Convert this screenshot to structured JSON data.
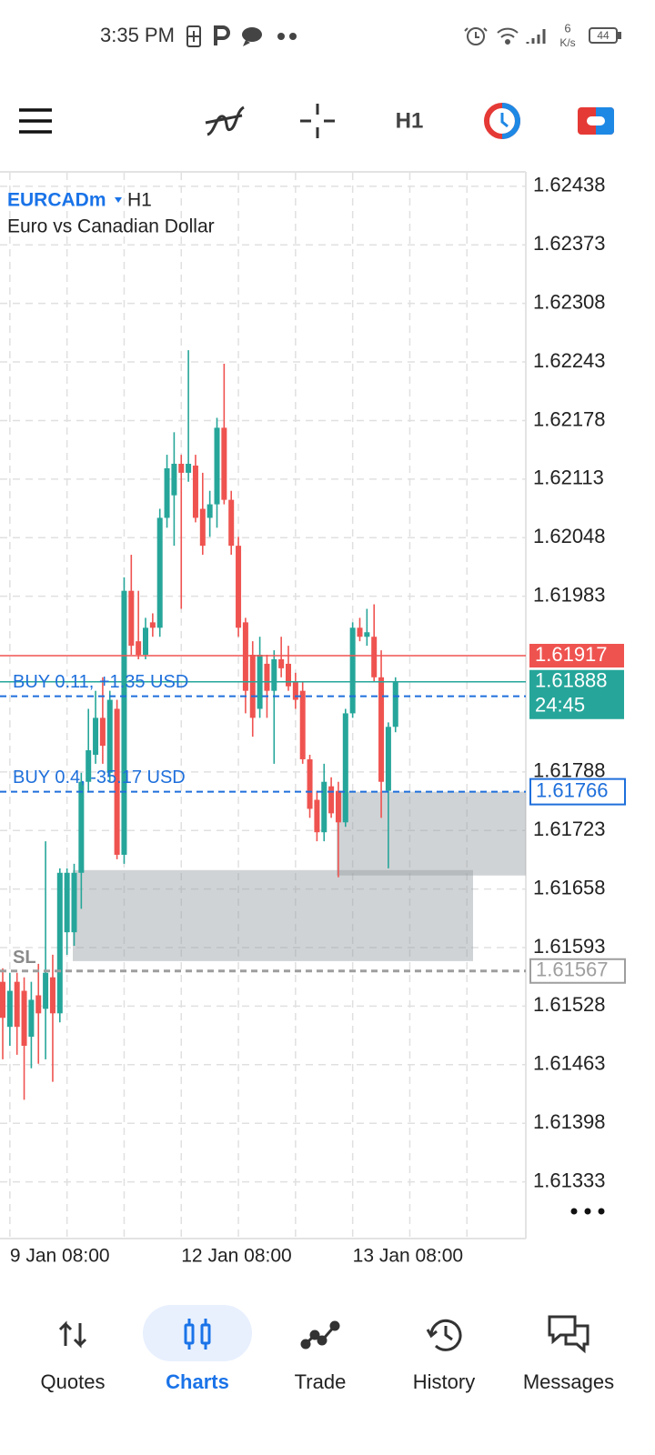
{
  "status_bar": {
    "time": "3:35 PM",
    "speed_value": "6",
    "speed_unit": "K/s",
    "battery": "44"
  },
  "toolbar": {
    "timeframe": "H1"
  },
  "chart_data": {
    "type": "candlestick",
    "symbol": "EURCADm",
    "timeframe": "H1",
    "description": "Euro vs Canadian Dollar",
    "categories": [
      null,
      "9 Jan 08:00",
      null,
      null,
      null,
      null,
      null,
      null,
      null,
      null,
      null,
      null,
      null,
      null,
      null,
      null,
      null,
      null,
      null,
      null,
      null,
      null,
      null,
      null,
      null,
      "12 Jan 08:00",
      null,
      null,
      null,
      null,
      null,
      null,
      null,
      null,
      null,
      null,
      null,
      null,
      null,
      null,
      null,
      null,
      null,
      null,
      null,
      null,
      null,
      null,
      null,
      "13 Jan 08:00",
      null,
      null,
      null,
      null,
      null,
      null,
      null,
      null,
      null,
      null,
      null,
      null,
      null,
      null,
      null,
      null,
      null,
      null,
      null,
      null,
      null,
      null,
      null
    ],
    "open": [
      1.61555,
      1.61505,
      1.61555,
      1.61545,
      1.61494,
      1.6154,
      1.61525,
      1.6156,
      1.6152,
      1.6161,
      1.6161,
      1.61676,
      1.61777,
      1.61807,
      1.61848,
      1.61787,
      1.61858,
      1.61696,
      1.61989,
      1.61933,
      1.61918,
      1.61954,
      1.61948,
      1.6207,
      1.62095,
      1.6213,
      1.6212,
      1.62128,
      1.6208,
      1.6207,
      1.62085,
      1.6217,
      1.6209,
      1.62039,
      1.61954,
      1.61918,
      1.61858,
      1.61908,
      1.61878,
      1.61913,
      1.61908,
      1.61888,
      1.61878,
      1.61802,
      1.61757,
      1.61721,
      1.61772,
      1.61767,
      1.61732,
      1.61853,
      1.61948,
      1.61938,
      1.61938,
      1.61893,
      1.61767,
      1.61838,
      null,
      null,
      null,
      null,
      null,
      null,
      null,
      null,
      null,
      null,
      null,
      null,
      null,
      null,
      null,
      null,
      null
    ],
    "high": [
      1.6157,
      1.61565,
      1.61565,
      1.6156,
      1.61555,
      1.61575,
      1.61711,
      1.61585,
      1.61681,
      1.61681,
      1.61686,
      1.61787,
      1.61858,
      1.61878,
      1.61893,
      1.61878,
      1.61868,
      1.62004,
      1.62029,
      1.61989,
      1.61959,
      1.61964,
      1.6208,
      1.6214,
      1.62165,
      1.6214,
      1.62256,
      1.6214,
      1.6212,
      1.621,
      1.62181,
      1.62241,
      1.621,
      1.62049,
      1.61959,
      1.61933,
      1.61938,
      1.61918,
      1.61923,
      1.61938,
      1.61928,
      1.61898,
      1.61888,
      1.61807,
      1.61767,
      1.61797,
      1.61782,
      1.61777,
      1.61858,
      1.61954,
      1.61959,
      1.61969,
      1.61974,
      1.61923,
      1.61843,
      1.61893,
      null,
      null,
      null,
      null,
      null,
      null,
      null,
      null,
      null,
      null,
      null,
      null,
      null,
      null,
      null,
      null,
      null
    ],
    "low": [
      1.61469,
      1.61484,
      1.61474,
      1.61424,
      1.61459,
      1.61464,
      1.61469,
      1.61444,
      1.6151,
      1.61585,
      1.61595,
      1.61636,
      1.61767,
      1.61797,
      1.61797,
      1.61777,
      1.61691,
      1.61686,
      1.61918,
      1.61913,
      1.61913,
      1.61938,
      1.61938,
      1.62059,
      1.62039,
      1.61969,
      1.6211,
      1.62065,
      1.62029,
      1.62049,
      1.62059,
      1.62085,
      1.62029,
      1.61938,
      1.61853,
      1.61827,
      1.61848,
      1.61848,
      1.61797,
      1.61893,
      1.61878,
      1.61858,
      1.61797,
      1.61737,
      1.61711,
      1.61711,
      1.61737,
      1.61671,
      1.61727,
      1.61848,
      1.61933,
      1.61928,
      1.61888,
      1.61737,
      1.61681,
      1.61832,
      null,
      null,
      null,
      null,
      null,
      null,
      null,
      null,
      null,
      null,
      null,
      null,
      null,
      null,
      null,
      null,
      null
    ],
    "close": [
      1.61515,
      1.61545,
      1.61505,
      1.61484,
      1.61535,
      1.6152,
      1.61565,
      1.6152,
      1.61676,
      1.61676,
      1.61676,
      1.61777,
      1.61812,
      1.61848,
      1.61817,
      1.61868,
      1.61696,
      1.61989,
      1.61928,
      1.61918,
      1.61948,
      1.61948,
      1.6207,
      1.62125,
      1.6213,
      1.6212,
      1.6213,
      1.6207,
      1.62039,
      1.62085,
      1.6217,
      1.6209,
      1.62039,
      1.61948,
      1.61878,
      1.61848,
      1.61918,
      1.61878,
      1.61913,
      1.61903,
      1.61883,
      1.61868,
      1.61802,
      1.61747,
      1.61721,
      1.61777,
      1.61742,
      1.61732,
      1.61853,
      1.61948,
      1.61938,
      1.61943,
      1.61893,
      1.61777,
      1.61838,
      1.61888,
      null,
      null,
      null,
      null,
      null,
      null,
      null,
      null,
      null,
      null,
      null,
      null,
      null,
      null,
      null,
      null,
      null
    ],
    "up_color": "#26a69a",
    "down_color": "#ef5350",
    "ylim": [
      1.6127,
      1.62453
    ],
    "yticks": [
      1.62438,
      1.62373,
      1.62308,
      1.62243,
      1.62178,
      1.62113,
      1.62048,
      1.61983,
      1.61788,
      1.61723,
      1.61658,
      1.61593,
      1.61528,
      1.61463,
      1.61398,
      1.61333
    ],
    "grid": true,
    "bid": {
      "price": 1.61917,
      "color": "#ef5350"
    },
    "ask": {
      "price": 1.61888,
      "color": "#26a69a",
      "countdown": "24:45"
    },
    "orders": [
      {
        "label": "BUY 0.11, +1.35 USD",
        "price": 1.61872
      },
      {
        "label": "BUY 0.4, -35.17 USD",
        "price": 1.61766
      }
    ],
    "stop_loss": {
      "label": "SL",
      "price": 1.61567
    },
    "zones": [
      {
        "top": 1.61679,
        "bottom": 1.61578
      },
      {
        "top": 1.61766,
        "bottom": 1.61673
      }
    ]
  },
  "nav": {
    "items": [
      "Quotes",
      "Charts",
      "Trade",
      "History",
      "Messages"
    ],
    "active": "Charts"
  }
}
